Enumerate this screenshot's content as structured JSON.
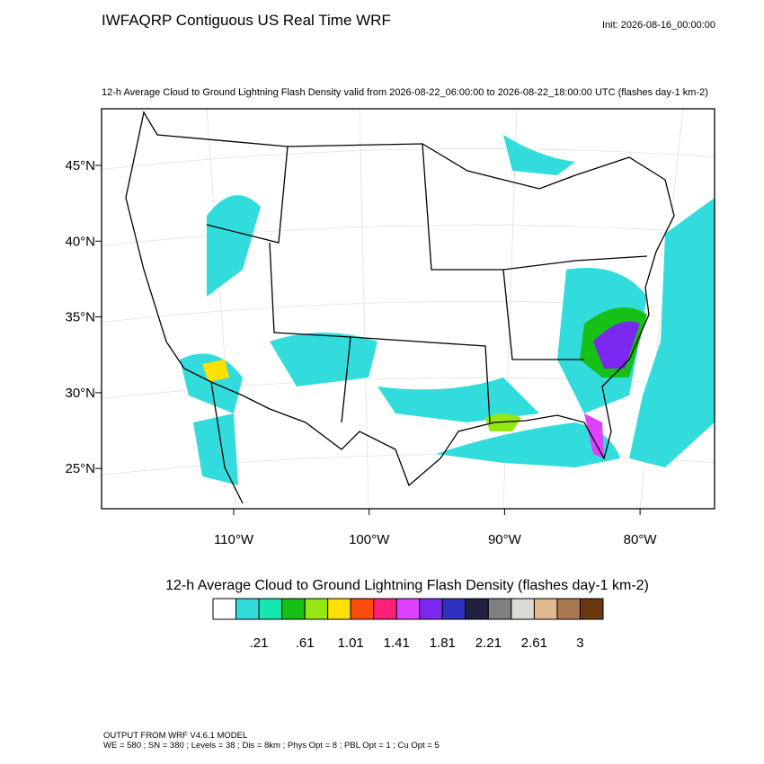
{
  "title": "IWFAQRP Contiguous US Real Time WRF",
  "init": "Init: 2026-08-16_00:00:00",
  "subtitle": "12-h Average Cloud to Ground Lightning Flash Density valid from 2026-08-22_06:00:00 to 2026-08-22_18:00:00 UTC   (flashes day-1 km-2)",
  "lat_labels": [
    "45°N",
    "40°N",
    "35°N",
    "30°N",
    "25°N"
  ],
  "lon_labels": [
    "110°W",
    "100°W",
    "90°W",
    "80°W"
  ],
  "colorbar": {
    "title": "12-h Average Cloud to Ground Lightning Flash Density  (flashes day-1 km-2)",
    "colors": [
      "#ffffff",
      "#33dcdc",
      "#14e8b0",
      "#16c016",
      "#96e614",
      "#ffe000",
      "#ff4a10",
      "#ff1e78",
      "#e040ff",
      "#7a28f0",
      "#3030c0",
      "#202040",
      "#808080",
      "#dcdad4",
      "#e0b890",
      "#a87850",
      "#6a3810"
    ],
    "labels": [
      ".21",
      ".61",
      "1.01",
      "1.41",
      "1.81",
      "2.21",
      "2.61",
      "3"
    ]
  },
  "footer": [
    "OUTPUT FROM WRF V4.6.1 MODEL",
    "WE = 580 ; SN = 380 ; Levels = 38 ; Dis = 8km ; Phys Opt = 8 ; PBL Opt = 1 ; Cu Opt = 5"
  ]
}
